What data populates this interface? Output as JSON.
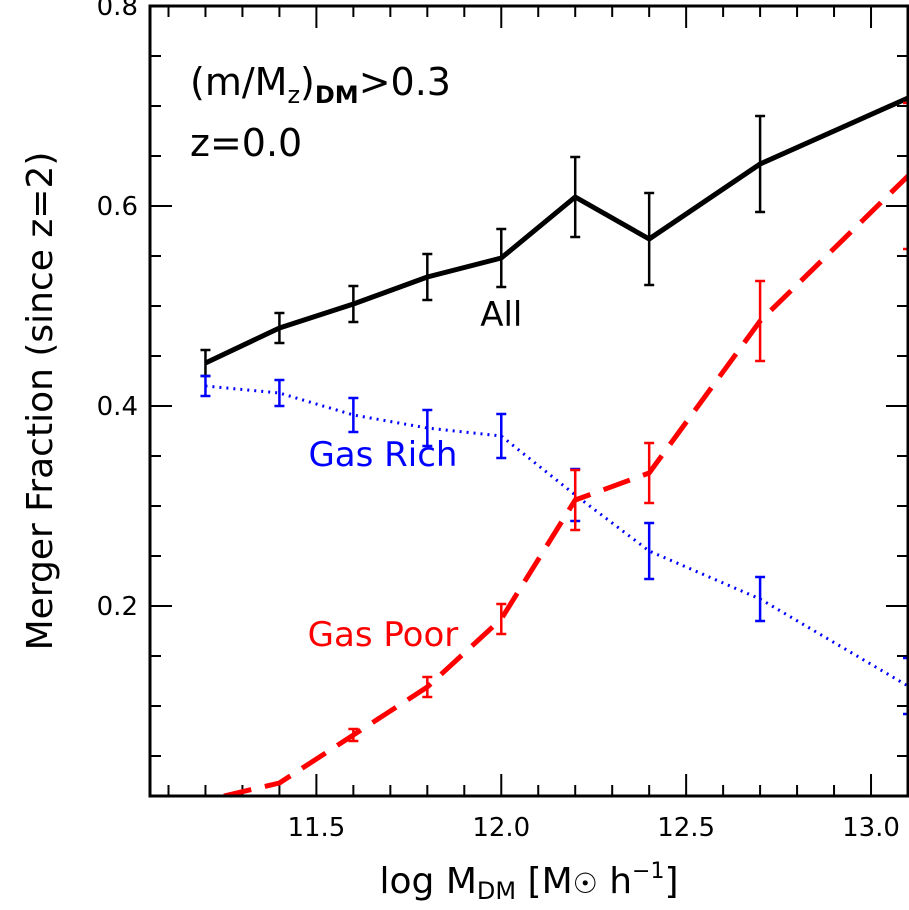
{
  "chart_data": {
    "type": "line",
    "xlabel": {
      "pre": "log M",
      "sub": "DM",
      "unit_open": " [M",
      "sun": "☉",
      "unit_mid": " h",
      "sup": "−1",
      "unit_close": "]"
    },
    "ylabel": "Merger Fraction (since z=2)",
    "xlim": [
      11.05,
      13.1
    ],
    "ylim": [
      0.01,
      0.8
    ],
    "x_ticks": [
      11.5,
      12.0,
      12.5,
      13.0
    ],
    "x_tick_labels": [
      "11.5",
      "12.0",
      "12.5",
      "13.0"
    ],
    "y_ticks": [
      0.2,
      0.4,
      0.6,
      0.8
    ],
    "y_tick_labels": [
      "0.2",
      "0.4",
      "0.6",
      "0.8"
    ],
    "annotations": {
      "criterion": {
        "pre": "(m/M",
        "sub1": "z",
        "mid": ")",
        "sub2": "DM",
        "post": ">0.3"
      },
      "redshift": "z=0.0"
    },
    "series": [
      {
        "name": "All",
        "color": "#000000",
        "style": "solid",
        "x": [
          11.2,
          11.4,
          11.6,
          11.8,
          12.0,
          12.2,
          12.4,
          12.7,
          13.1
        ],
        "y": [
          0.443,
          0.478,
          0.502,
          0.529,
          0.548,
          0.609,
          0.567,
          0.642,
          0.708
        ],
        "err": [
          0.013,
          0.015,
          0.018,
          0.023,
          0.029,
          0.04,
          0.046,
          0.048,
          0.0
        ]
      },
      {
        "name": "Gas Rich",
        "color": "#0000ff",
        "style": "dotted",
        "x": [
          11.2,
          11.4,
          11.6,
          11.8,
          12.0,
          12.2,
          12.4,
          12.7,
          13.1
        ],
        "y": [
          0.42,
          0.413,
          0.391,
          0.378,
          0.37,
          0.311,
          0.255,
          0.207,
          0.12
        ],
        "err": [
          0.01,
          0.013,
          0.017,
          0.018,
          0.022,
          0.026,
          0.028,
          0.022,
          0.028
        ]
      },
      {
        "name": "Gas Poor",
        "color": "#ff0000",
        "style": "dashed",
        "x": [
          11.25,
          11.4,
          11.6,
          11.8,
          12.0,
          12.2,
          12.4,
          12.7,
          13.1
        ],
        "y": [
          0.01,
          0.023,
          0.071,
          0.119,
          0.187,
          0.306,
          0.333,
          0.485,
          0.63
        ],
        "err": [
          0.0,
          0.0,
          0.006,
          0.01,
          0.015,
          0.03,
          0.03,
          0.04,
          0.073
        ]
      }
    ],
    "series_label_positions": {
      "All": [
        12.0,
        0.48
      ],
      "Gas Rich": [
        11.68,
        0.34
      ],
      "Gas Poor": [
        11.68,
        0.16
      ]
    }
  }
}
